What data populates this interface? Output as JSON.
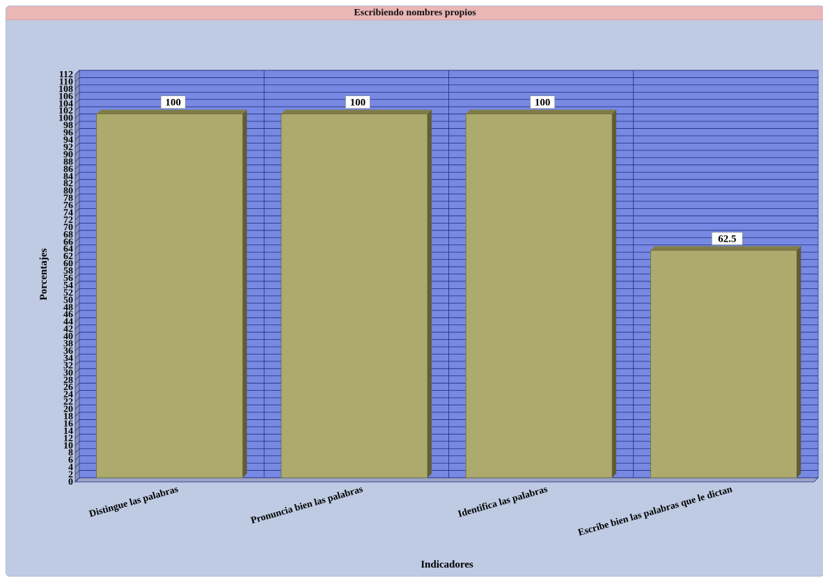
{
  "chart_data": {
    "type": "bar",
    "title": "Escribiendo nombres propios",
    "xlabel": "Indicadores",
    "ylabel": "Porcentajes",
    "categories": [
      "Distingue las palabras",
      "Pronuncia bien las palabras",
      "Identifica las palabras",
      "Escribe bien las palabras que le dictan"
    ],
    "values": [
      100,
      100,
      100,
      62.5
    ],
    "value_labels": [
      "100",
      "100",
      "100",
      "62.5"
    ],
    "ylim": [
      0,
      112
    ],
    "ytick_step": 2,
    "grid": true,
    "legend": "none",
    "colors": {
      "plot_background": "#7789e2",
      "grid_line": "#1c2a7a",
      "bar_front": "#adaa6d",
      "bar_side": "#5f5c36",
      "bar_top": "#807d4a",
      "panel_background": "#bfcbe3",
      "title_background": "#eab6b6"
    }
  }
}
